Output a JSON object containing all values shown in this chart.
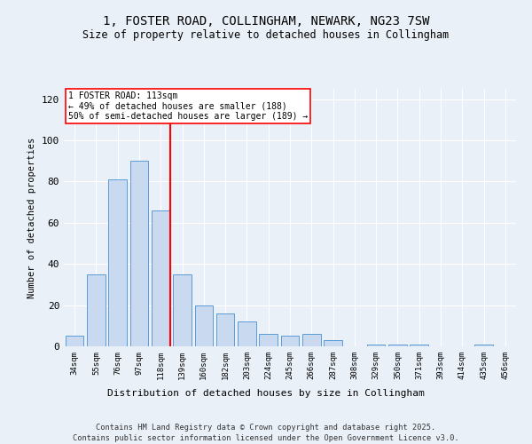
{
  "title1": "1, FOSTER ROAD, COLLINGHAM, NEWARK, NG23 7SW",
  "title2": "Size of property relative to detached houses in Collingham",
  "categories": [
    "34sqm",
    "55sqm",
    "76sqm",
    "97sqm",
    "118sqm",
    "139sqm",
    "160sqm",
    "182sqm",
    "203sqm",
    "224sqm",
    "245sqm",
    "266sqm",
    "287sqm",
    "308sqm",
    "329sqm",
    "350sqm",
    "371sqm",
    "393sqm",
    "414sqm",
    "435sqm",
    "456sqm"
  ],
  "values": [
    5,
    35,
    81,
    90,
    66,
    35,
    20,
    16,
    12,
    6,
    5,
    6,
    3,
    0,
    1,
    1,
    1,
    0,
    0,
    1,
    0
  ],
  "bar_color": "#c8d9f0",
  "bar_edge_color": "#5b9bd5",
  "red_line_index": 4,
  "annotation_title": "1 FOSTER ROAD: 113sqm",
  "annotation_line1": "← 49% of detached houses are smaller (188)",
  "annotation_line2": "50% of semi-detached houses are larger (189) →",
  "ylabel": "Number of detached properties",
  "xlabel": "Distribution of detached houses by size in Collingham",
  "footer1": "Contains HM Land Registry data © Crown copyright and database right 2025.",
  "footer2": "Contains public sector information licensed under the Open Government Licence v3.0.",
  "ylim": [
    0,
    125
  ],
  "bg_color": "#eaf0f8"
}
